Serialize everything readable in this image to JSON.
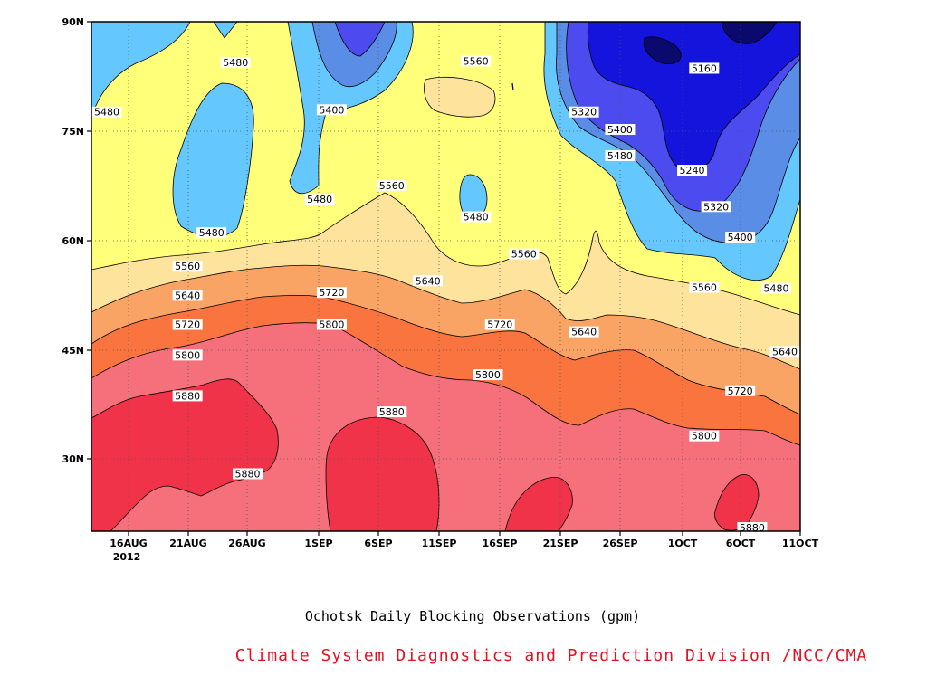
{
  "chart_data": {
    "type": "heatmap",
    "subtype": "filled-contour",
    "title": "Ochotsk Daily Blocking Observations (gpm)",
    "source": "Climate System Diagnostics and Prediction Division /NCC/CMA",
    "x_ticks": [
      "16AUG",
      "21AUG",
      "26AUG",
      "1SEP",
      "6SEP",
      "11SEP",
      "16SEP",
      "21SEP",
      "26SEP",
      "1OCT",
      "6OCT",
      "11OCT"
    ],
    "x_tick_labels": [
      "16AUG",
      "21AUG",
      "26AUG",
      "1SEP",
      "6SEP",
      "11SEP",
      "16SEP",
      "21SEP",
      "26SEP",
      "1OCT",
      "6OCT",
      "11OCT"
    ],
    "x_year_label": "2012",
    "xlim": [
      "2012-08-13",
      "2012-10-11"
    ],
    "y_ticks": [
      "30N",
      "45N",
      "60N",
      "75N",
      "90N"
    ],
    "ylim": [
      20,
      90
    ],
    "contour_levels": [
      5160,
      5240,
      5320,
      5400,
      5480,
      5560,
      5640,
      5720,
      5800,
      5880
    ],
    "band_colors": {
      "lt5160": "#0a0a6e",
      "5160": "#1414dc",
      "5240": "#4b4bf0",
      "5320": "#5a8ee6",
      "5400": "#64c8ff",
      "5480": "#ffff7a",
      "5560": "#fde39c",
      "5640": "#f9a365",
      "5720": "#fa7440",
      "5800": "#f5707a",
      "5880": "#f03348"
    },
    "contour_labels": [
      {
        "text": "5160",
        "x": "2012-10-03",
        "y": 83.6
      },
      {
        "text": "5240",
        "x": "2012-10-02",
        "y": 69.6
      },
      {
        "text": "5320",
        "x": "2012-09-23",
        "y": 77.6
      },
      {
        "text": "5320",
        "x": "2012-10-04",
        "y": 64.6
      },
      {
        "text": "5400",
        "x": "2012-09-02",
        "y": 77.9
      },
      {
        "text": "5400",
        "x": "2012-09-26",
        "y": 75.2
      },
      {
        "text": "5400",
        "x": "2012-10-06",
        "y": 60.4
      },
      {
        "text": "5480",
        "x": "2012-08-14",
        "y": 77.6
      },
      {
        "text": "5480",
        "x": "2012-08-25",
        "y": 84.4
      },
      {
        "text": "5480",
        "x": "2012-08-23",
        "y": 61.0
      },
      {
        "text": "5480",
        "x": "2012-09-01",
        "y": 65.6
      },
      {
        "text": "5480",
        "x": "2012-09-14",
        "y": 63.2
      },
      {
        "text": "5480",
        "x": "2012-09-26",
        "y": 71.6
      },
      {
        "text": "5480",
        "x": "2012-10-09",
        "y": 53.4
      },
      {
        "text": "5560",
        "x": "2012-08-21",
        "y": 56.4
      },
      {
        "text": "5560",
        "x": "2012-09-07",
        "y": 67.5
      },
      {
        "text": "5560",
        "x": "2012-09-14",
        "y": 84.6
      },
      {
        "text": "5560",
        "x": "2012-09-18",
        "y": 58.1
      },
      {
        "text": "5560",
        "x": "2012-10-03",
        "y": 53.5
      },
      {
        "text": "5640",
        "x": "2012-08-21",
        "y": 52.4
      },
      {
        "text": "5640",
        "x": "2012-09-10",
        "y": 54.4
      },
      {
        "text": "5640",
        "x": "2012-09-23",
        "y": 47.4
      },
      {
        "text": "5640",
        "x": "2012-10-10",
        "y": 44.7
      },
      {
        "text": "5720",
        "x": "2012-08-21",
        "y": 48.4
      },
      {
        "text": "5720",
        "x": "2012-09-02",
        "y": 52.8
      },
      {
        "text": "5720",
        "x": "2012-09-16",
        "y": 48.4
      },
      {
        "text": "5720",
        "x": "2012-10-06",
        "y": 39.3
      },
      {
        "text": "5800",
        "x": "2012-08-21",
        "y": 44.2
      },
      {
        "text": "5800",
        "x": "2012-09-02",
        "y": 48.4
      },
      {
        "text": "5800",
        "x": "2012-09-15",
        "y": 41.5
      },
      {
        "text": "5800",
        "x": "2012-10-03",
        "y": 33.1
      },
      {
        "text": "5880",
        "x": "2012-08-21",
        "y": 38.6
      },
      {
        "text": "5880",
        "x": "2012-08-26",
        "y": 27.9
      },
      {
        "text": "5880",
        "x": "2012-09-07",
        "y": 36.4
      },
      {
        "text": "5880",
        "x": "2012-10-07",
        "y": 20.5
      }
    ]
  }
}
